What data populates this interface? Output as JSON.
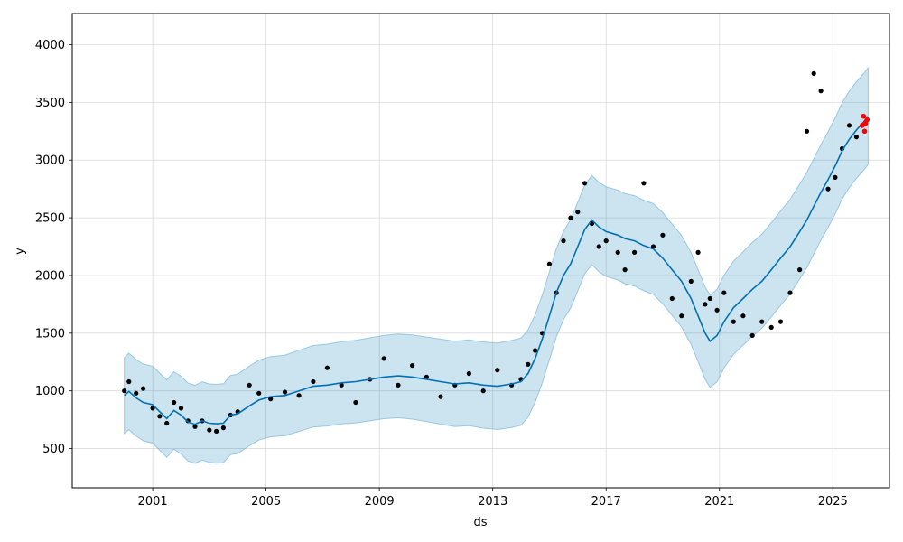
{
  "chart_data": {
    "type": "line",
    "title": "",
    "xlabel": "ds",
    "ylabel": "y",
    "xlim": [
      "1998-03-01",
      "2027-01-01"
    ],
    "ylim": [
      160,
      4270
    ],
    "grid": true,
    "legend": "none",
    "x_ticks": [
      "2001",
      "2005",
      "2009",
      "2013",
      "2017",
      "2021",
      "2025"
    ],
    "y_ticks": [
      500,
      1000,
      1500,
      2000,
      2500,
      3000,
      3500,
      4000
    ],
    "colors": {
      "forecast": "#0072B2",
      "interval": "#0072B2",
      "observed": "#000000",
      "recent": "#ff0000"
    },
    "series": [
      {
        "name": "",
        "kind": "forecast_line",
        "points": [
          [
            "2000-01-01",
            960
          ],
          [
            "2000-03-01",
            995
          ],
          [
            "2000-06-01",
            940
          ],
          [
            "2000-09-01",
            900
          ],
          [
            "2001-01-01",
            880
          ],
          [
            "2001-04-01",
            820
          ],
          [
            "2001-07-01",
            760
          ],
          [
            "2001-10-01",
            830
          ],
          [
            "2002-01-01",
            790
          ],
          [
            "2002-04-01",
            730
          ],
          [
            "2002-07-01",
            710
          ],
          [
            "2002-10-01",
            740
          ],
          [
            "2003-01-01",
            720
          ],
          [
            "2003-04-01",
            715
          ],
          [
            "2003-07-01",
            720
          ],
          [
            "2003-10-01",
            790
          ],
          [
            "2004-01-01",
            800
          ],
          [
            "2004-06-01",
            870
          ],
          [
            "2004-10-01",
            920
          ],
          [
            "2005-03-01",
            950
          ],
          [
            "2005-09-01",
            960
          ],
          [
            "2006-03-01",
            1000
          ],
          [
            "2006-09-01",
            1040
          ],
          [
            "2007-03-01",
            1050
          ],
          [
            "2007-09-01",
            1070
          ],
          [
            "2008-03-01",
            1080
          ],
          [
            "2008-09-01",
            1100
          ],
          [
            "2009-03-01",
            1120
          ],
          [
            "2009-09-01",
            1130
          ],
          [
            "2010-03-01",
            1120
          ],
          [
            "2010-09-01",
            1100
          ],
          [
            "2011-03-01",
            1080
          ],
          [
            "2011-09-01",
            1060
          ],
          [
            "2012-03-01",
            1070
          ],
          [
            "2012-09-01",
            1050
          ],
          [
            "2013-03-01",
            1040
          ],
          [
            "2013-09-01",
            1060
          ],
          [
            "2014-01-01",
            1080
          ],
          [
            "2014-04-01",
            1150
          ],
          [
            "2014-07-01",
            1280
          ],
          [
            "2014-10-01",
            1450
          ],
          [
            "2015-01-01",
            1650
          ],
          [
            "2015-04-01",
            1850
          ],
          [
            "2015-07-01",
            2000
          ],
          [
            "2015-10-01",
            2100
          ],
          [
            "2016-01-01",
            2250
          ],
          [
            "2016-04-01",
            2400
          ],
          [
            "2016-07-01",
            2480
          ],
          [
            "2016-10-01",
            2420
          ],
          [
            "2017-01-01",
            2380
          ],
          [
            "2017-06-01",
            2350
          ],
          [
            "2017-09-01",
            2320
          ],
          [
            "2018-01-01",
            2300
          ],
          [
            "2018-05-01",
            2260
          ],
          [
            "2018-09-01",
            2230
          ],
          [
            "2019-01-01",
            2150
          ],
          [
            "2019-05-01",
            2050
          ],
          [
            "2019-09-01",
            1950
          ],
          [
            "2020-01-01",
            1800
          ],
          [
            "2020-04-01",
            1650
          ],
          [
            "2020-07-01",
            1500
          ],
          [
            "2020-09-01",
            1430
          ],
          [
            "2020-12-01",
            1480
          ],
          [
            "2021-03-01",
            1600
          ],
          [
            "2021-07-01",
            1720
          ],
          [
            "2021-11-01",
            1800
          ],
          [
            "2022-03-01",
            1880
          ],
          [
            "2022-07-01",
            1950
          ],
          [
            "2022-11-01",
            2050
          ],
          [
            "2023-03-01",
            2150
          ],
          [
            "2023-07-01",
            2250
          ],
          [
            "2023-11-01",
            2380
          ],
          [
            "2024-02-01",
            2480
          ],
          [
            "2024-05-01",
            2600
          ],
          [
            "2024-08-01",
            2720
          ],
          [
            "2024-11-01",
            2830
          ],
          [
            "2025-02-01",
            2950
          ],
          [
            "2025-05-01",
            3080
          ],
          [
            "2025-08-01",
            3180
          ],
          [
            "2025-11-01",
            3260
          ],
          [
            "2026-02-01",
            3330
          ],
          [
            "2026-04-01",
            3380
          ]
        ]
      },
      {
        "name": "",
        "kind": "observed",
        "points": [
          [
            "2000-01-01",
            1000
          ],
          [
            "2000-03-01",
            1080
          ],
          [
            "2000-06-01",
            980
          ],
          [
            "2000-09-01",
            1020
          ],
          [
            "2001-01-01",
            850
          ],
          [
            "2001-04-01",
            780
          ],
          [
            "2001-07-01",
            720
          ],
          [
            "2001-10-01",
            900
          ],
          [
            "2002-01-01",
            850
          ],
          [
            "2002-04-01",
            740
          ],
          [
            "2002-07-01",
            690
          ],
          [
            "2002-10-01",
            740
          ],
          [
            "2003-01-01",
            660
          ],
          [
            "2003-04-01",
            650
          ],
          [
            "2003-07-01",
            680
          ],
          [
            "2003-10-01",
            790
          ],
          [
            "2004-01-01",
            820
          ],
          [
            "2004-06-01",
            1050
          ],
          [
            "2004-10-01",
            980
          ],
          [
            "2005-03-01",
            930
          ],
          [
            "2005-09-01",
            990
          ],
          [
            "2006-03-01",
            960
          ],
          [
            "2006-09-01",
            1080
          ],
          [
            "2007-03-01",
            1200
          ],
          [
            "2007-09-01",
            1050
          ],
          [
            "2008-03-01",
            900
          ],
          [
            "2008-09-01",
            1100
          ],
          [
            "2009-03-01",
            1280
          ],
          [
            "2009-09-01",
            1050
          ],
          [
            "2010-03-01",
            1220
          ],
          [
            "2010-09-01",
            1120
          ],
          [
            "2011-03-01",
            950
          ],
          [
            "2011-09-01",
            1050
          ],
          [
            "2012-03-01",
            1150
          ],
          [
            "2012-09-01",
            1000
          ],
          [
            "2013-03-01",
            1180
          ],
          [
            "2013-09-01",
            1050
          ],
          [
            "2014-01-01",
            1100
          ],
          [
            "2014-04-01",
            1230
          ],
          [
            "2014-07-01",
            1350
          ],
          [
            "2014-10-01",
            1500
          ],
          [
            "2015-01-01",
            2100
          ],
          [
            "2015-04-01",
            1850
          ],
          [
            "2015-07-01",
            2300
          ],
          [
            "2015-10-01",
            2500
          ],
          [
            "2016-01-01",
            2550
          ],
          [
            "2016-04-01",
            2800
          ],
          [
            "2016-07-01",
            2450
          ],
          [
            "2016-10-01",
            2250
          ],
          [
            "2017-01-01",
            2300
          ],
          [
            "2017-06-01",
            2200
          ],
          [
            "2017-09-01",
            2050
          ],
          [
            "2018-01-01",
            2200
          ],
          [
            "2018-05-01",
            2800
          ],
          [
            "2018-09-01",
            2250
          ],
          [
            "2019-01-01",
            2350
          ],
          [
            "2019-05-01",
            1800
          ],
          [
            "2019-09-01",
            1650
          ],
          [
            "2020-01-01",
            1950
          ],
          [
            "2020-04-01",
            2200
          ],
          [
            "2020-07-01",
            1750
          ],
          [
            "2020-09-01",
            1800
          ],
          [
            "2020-12-01",
            1700
          ],
          [
            "2021-03-01",
            1850
          ],
          [
            "2021-07-01",
            1600
          ],
          [
            "2021-11-01",
            1650
          ],
          [
            "2022-03-01",
            1480
          ],
          [
            "2022-07-01",
            1600
          ],
          [
            "2022-11-01",
            1550
          ],
          [
            "2023-03-01",
            1600
          ],
          [
            "2023-07-01",
            1850
          ],
          [
            "2023-11-01",
            2050
          ],
          [
            "2024-02-01",
            3250
          ],
          [
            "2024-05-01",
            3750
          ],
          [
            "2024-08-01",
            3600
          ],
          [
            "2024-11-01",
            2750
          ],
          [
            "2025-02-01",
            2850
          ],
          [
            "2025-05-01",
            3100
          ],
          [
            "2025-08-01",
            3300
          ],
          [
            "2025-11-01",
            3200
          ]
        ]
      },
      {
        "name": "",
        "kind": "recent",
        "points": [
          [
            "2026-01-15",
            3300
          ],
          [
            "2026-02-01",
            3380
          ],
          [
            "2026-02-15",
            3250
          ],
          [
            "2026-03-01",
            3320
          ],
          [
            "2026-03-20",
            3350
          ]
        ]
      }
    ],
    "interval": {
      "half_width_early": 330,
      "half_width_late": 420
    }
  }
}
